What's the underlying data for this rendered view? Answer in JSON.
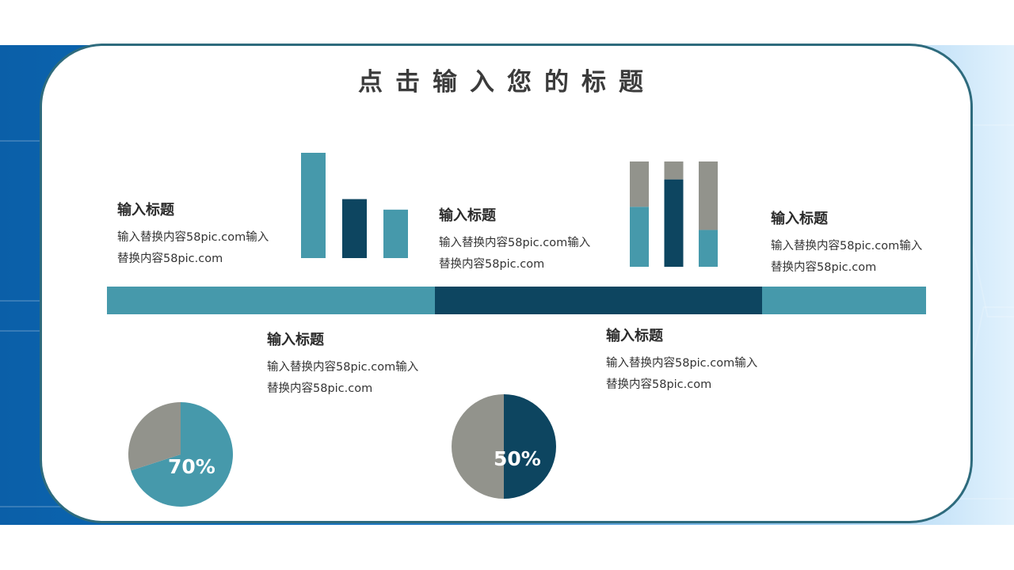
{
  "title": "点击输入您的标题",
  "colors": {
    "teal": "#4699ab",
    "navy": "#0d4560",
    "gray": "#92938c",
    "card_border": "#2e6b7d"
  },
  "blocks": [
    {
      "heading": "输入标题",
      "text": "输入替换内容58pic.com输入替换内容58pic.com"
    },
    {
      "heading": "输入标题",
      "text": "输入替换内容58pic.com输入替换内容58pic.com"
    },
    {
      "heading": "输入标题",
      "text": "输入替换内容58pic.com输入替换内容58pic.com"
    },
    {
      "heading": "输入标题",
      "text": "输入替换内容58pic.com输入替换内容58pic.com"
    },
    {
      "heading": "输入标题",
      "text": "输入替换内容58pic.com输入替换内容58pic.com"
    }
  ],
  "chart_data": [
    {
      "type": "bar",
      "categories": [
        "",
        "",
        ""
      ],
      "values": [
        100,
        56,
        46
      ],
      "colors": [
        "#4699ab",
        "#0d4560",
        "#4699ab"
      ]
    },
    {
      "type": "bar",
      "stacked": true,
      "categories": [
        "",
        "",
        ""
      ],
      "series": [
        {
          "values": [
            57,
            83,
            35
          ],
          "color": "#4699ab"
        },
        {
          "values": [
            43,
            17,
            65
          ],
          "color": "#92938c"
        }
      ],
      "segment_colors": [
        [
          "#4699ab",
          "#92938c"
        ],
        [
          "#0d4560",
          "#92938c"
        ],
        [
          "#4699ab",
          "#92938c"
        ]
      ]
    },
    {
      "type": "pie",
      "values": [
        70,
        30
      ],
      "colors": [
        "#4699ab",
        "#92938c"
      ],
      "label": "70%"
    },
    {
      "type": "pie",
      "values": [
        50,
        50
      ],
      "colors": [
        "#0d4560",
        "#92938c"
      ],
      "label": "50%"
    }
  ],
  "timeline": {
    "segments": [
      {
        "share": 0.4,
        "color": "#4699ab"
      },
      {
        "share": 0.4,
        "color": "#0d4560"
      },
      {
        "share": 0.2,
        "color": "#4699ab"
      }
    ]
  }
}
